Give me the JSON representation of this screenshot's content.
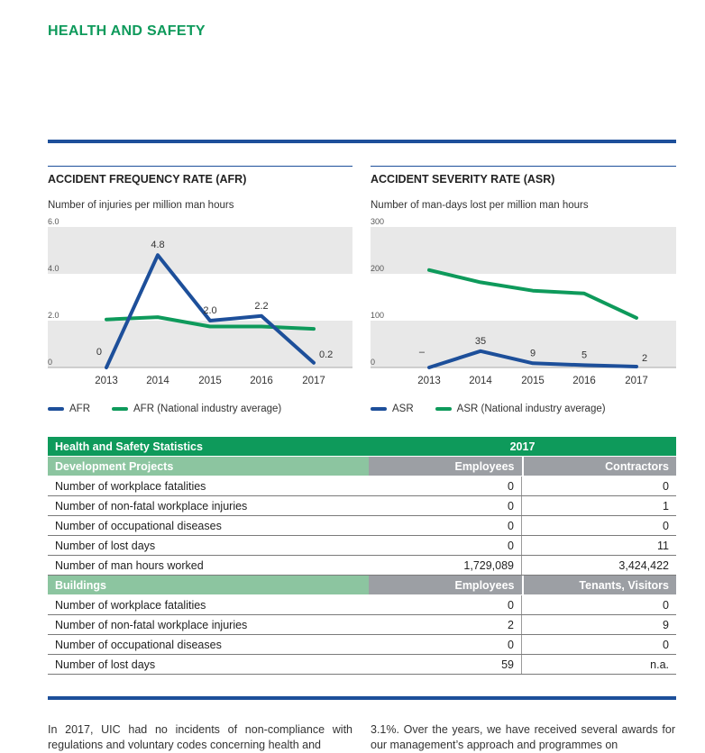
{
  "section_title": "HEALTH AND SAFETY",
  "colors": {
    "green": "#0e9a5b",
    "blue": "#1d4f9a",
    "grid": "#e8e8e8"
  },
  "afr_chart": {
    "title": "ACCIDENT FREQUENCY RATE (AFR)",
    "subtitle": "Number of injuries per million man hours",
    "y_ticks": [
      "6.0",
      "4.0",
      "2.0",
      "0"
    ],
    "legend": [
      "AFR",
      "AFR (National industry average)"
    ]
  },
  "asr_chart": {
    "title": "ACCIDENT SEVERITY RATE (ASR)",
    "subtitle": "Number of man-days lost per million man hours",
    "y_ticks": [
      "300",
      "200",
      "100",
      "0"
    ],
    "legend": [
      "ASR",
      "ASR (National industry average)"
    ]
  },
  "chart_data": [
    {
      "type": "line",
      "title": "ACCIDENT FREQUENCY RATE (AFR)",
      "ylabel": "Number of injuries per million man hours",
      "x": [
        "2013",
        "2014",
        "2015",
        "2016",
        "2017"
      ],
      "ylim": [
        0,
        6
      ],
      "series": [
        {
          "name": "AFR",
          "color": "#1d4f9a",
          "values": [
            0,
            4.8,
            2.0,
            2.2,
            0.2
          ],
          "labels": [
            "0",
            "4.8",
            "2.0",
            "2.2",
            "0.2"
          ]
        },
        {
          "name": "AFR (National industry average)",
          "color": "#0e9a5b",
          "values": [
            2.05,
            2.15,
            1.75,
            1.75,
            1.65
          ]
        }
      ]
    },
    {
      "type": "line",
      "title": "ACCIDENT SEVERITY RATE (ASR)",
      "ylabel": "Number of man-days lost per million man hours",
      "x": [
        "2013",
        "2014",
        "2015",
        "2016",
        "2017"
      ],
      "ylim": [
        0,
        300
      ],
      "series": [
        {
          "name": "ASR",
          "color": "#1d4f9a",
          "values": [
            0,
            35,
            9,
            5,
            2
          ],
          "labels": [
            "–",
            "35",
            "9",
            "5",
            "2"
          ]
        },
        {
          "name": "ASR (National industry average)",
          "color": "#0e9a5b",
          "values": [
            208,
            182,
            164,
            158,
            106
          ]
        }
      ]
    }
  ],
  "table": {
    "title": "Health and Safety Statistics",
    "year": "2017",
    "sections": [
      {
        "label": "Development Projects",
        "col1": "Employees",
        "col2": "Contractors",
        "rows": [
          {
            "label": "Number of workplace fatalities",
            "a": "0",
            "b": "0"
          },
          {
            "label": "Number of non-fatal workplace injuries",
            "a": "0",
            "b": "1"
          },
          {
            "label": "Number of occupational diseases",
            "a": "0",
            "b": "0"
          },
          {
            "label": "Number of lost days",
            "a": "0",
            "b": "11"
          },
          {
            "label": "Number of man hours worked",
            "a": "1,729,089",
            "b": "3,424,422"
          }
        ]
      },
      {
        "label": "Buildings",
        "col1": "Employees",
        "col2": "Tenants, Visitors",
        "rows": [
          {
            "label": "Number of workplace fatalities",
            "a": "0",
            "b": "0"
          },
          {
            "label": "Number of non-fatal workplace injuries",
            "a": "2",
            "b": "9"
          },
          {
            "label": "Number of occupational diseases",
            "a": "0",
            "b": "0"
          },
          {
            "label": "Number of lost days",
            "a": "59",
            "b": "n.a."
          }
        ]
      }
    ]
  },
  "body_text": {
    "left": "In 2017, UIC had no incidents of non-compliance with regulations and voluntary codes concerning health and",
    "right": "3.1%. Over the years, we have received several awards for our management’s approach and programmes on"
  }
}
